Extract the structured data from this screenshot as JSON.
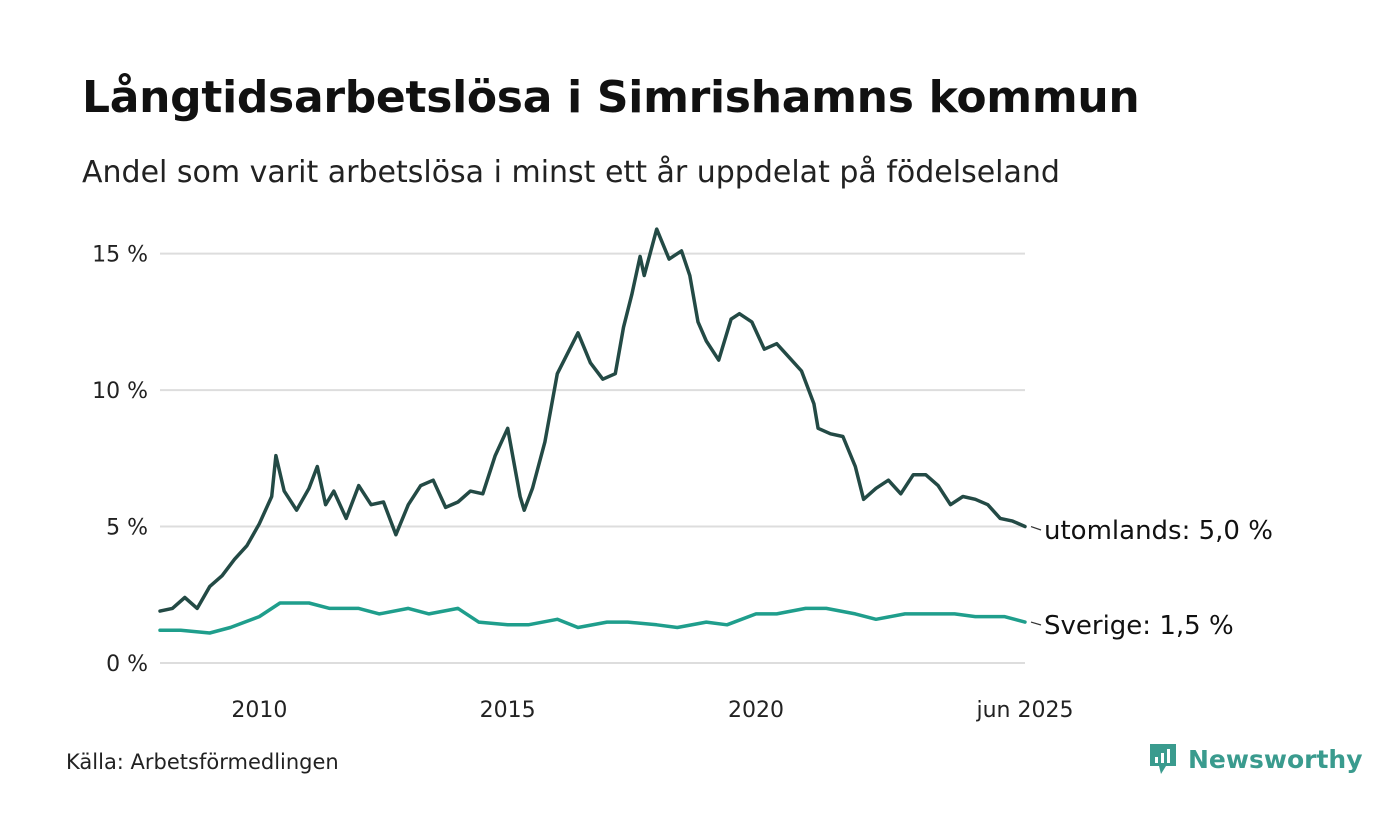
{
  "header": {
    "title": "Långtidsarbetslösa i Simrishamns kommun",
    "subtitle": "Andel som varit arbetslösa i minst ett år uppdelat på födelseland"
  },
  "footer": {
    "source": "Källa: Arbetsförmedlingen",
    "brand": "Newsworthy",
    "brand_icon": "newsworthy-logo-icon"
  },
  "colors": {
    "utomlands": "#234a45",
    "sverige": "#1f9e8c",
    "grid": "#dddddd",
    "brand": "#3a9b8e"
  },
  "chart_data": {
    "type": "line",
    "title": "Långtidsarbetslösa i Simrishamns kommun",
    "subtitle": "Andel som varit arbetslösa i minst ett år uppdelat på födelseland",
    "xlabel": "",
    "ylabel": "",
    "ylim": [
      0,
      15.5
    ],
    "xlim": [
      "2008-01",
      "2025-06"
    ],
    "grid": true,
    "legend": "end-of-line labels",
    "y_ticks": [
      {
        "value": 0,
        "label": "0 %"
      },
      {
        "value": 5,
        "label": "5 %"
      },
      {
        "value": 10,
        "label": "10 %"
      },
      {
        "value": 15,
        "label": "15 %"
      }
    ],
    "x_ticks": [
      {
        "value": "2010-01",
        "label": "2010"
      },
      {
        "value": "2015-01",
        "label": "2015"
      },
      {
        "value": "2020-01",
        "label": "2020"
      },
      {
        "value": "2025-06",
        "label": "jun 2025"
      }
    ],
    "series": [
      {
        "key": "utomlands",
        "end_label": "utomlands: 5,0 %",
        "points": [
          [
            "2008-01",
            1.9
          ],
          [
            "2008-04",
            2.0
          ],
          [
            "2008-07",
            2.4
          ],
          [
            "2008-10",
            2.0
          ],
          [
            "2009-01",
            2.8
          ],
          [
            "2009-04",
            3.2
          ],
          [
            "2009-07",
            3.8
          ],
          [
            "2009-10",
            4.3
          ],
          [
            "2010-01",
            5.1
          ],
          [
            "2010-04",
            6.1
          ],
          [
            "2010-05",
            7.6
          ],
          [
            "2010-07",
            6.3
          ],
          [
            "2010-10",
            5.6
          ],
          [
            "2011-01",
            6.4
          ],
          [
            "2011-03",
            7.2
          ],
          [
            "2011-05",
            5.8
          ],
          [
            "2011-07",
            6.3
          ],
          [
            "2011-10",
            5.3
          ],
          [
            "2012-01",
            6.5
          ],
          [
            "2012-04",
            5.8
          ],
          [
            "2012-07",
            5.9
          ],
          [
            "2012-10",
            4.7
          ],
          [
            "2013-01",
            5.8
          ],
          [
            "2013-04",
            6.5
          ],
          [
            "2013-07",
            6.7
          ],
          [
            "2013-10",
            5.7
          ],
          [
            "2014-01",
            5.9
          ],
          [
            "2014-04",
            6.3
          ],
          [
            "2014-07",
            6.2
          ],
          [
            "2014-10",
            7.6
          ],
          [
            "2015-01",
            8.6
          ],
          [
            "2015-04",
            6.1
          ],
          [
            "2015-05",
            5.6
          ],
          [
            "2015-07",
            6.4
          ],
          [
            "2015-10",
            8.1
          ],
          [
            "2016-01",
            10.6
          ],
          [
            "2016-04",
            11.5
          ],
          [
            "2016-06",
            12.1
          ],
          [
            "2016-09",
            11.0
          ],
          [
            "2016-12",
            10.4
          ],
          [
            "2017-03",
            10.6
          ],
          [
            "2017-05",
            12.3
          ],
          [
            "2017-07",
            13.5
          ],
          [
            "2017-09",
            14.9
          ],
          [
            "2017-10",
            14.2
          ],
          [
            "2018-01",
            15.9
          ],
          [
            "2018-04",
            14.8
          ],
          [
            "2018-07",
            15.1
          ],
          [
            "2018-09",
            14.2
          ],
          [
            "2018-11",
            12.5
          ],
          [
            "2019-01",
            11.8
          ],
          [
            "2019-04",
            11.1
          ],
          [
            "2019-07",
            12.6
          ],
          [
            "2019-09",
            12.8
          ],
          [
            "2019-12",
            12.5
          ],
          [
            "2020-03",
            11.5
          ],
          [
            "2020-06",
            11.7
          ],
          [
            "2020-09",
            11.2
          ],
          [
            "2020-12",
            10.7
          ],
          [
            "2021-03",
            9.5
          ],
          [
            "2021-04",
            8.6
          ],
          [
            "2021-07",
            8.4
          ],
          [
            "2021-10",
            8.3
          ],
          [
            "2022-01",
            7.2
          ],
          [
            "2022-03",
            6.0
          ],
          [
            "2022-06",
            6.4
          ],
          [
            "2022-09",
            6.7
          ],
          [
            "2022-12",
            6.2
          ],
          [
            "2023-03",
            6.9
          ],
          [
            "2023-06",
            6.9
          ],
          [
            "2023-09",
            6.5
          ],
          [
            "2023-12",
            5.8
          ],
          [
            "2024-03",
            6.1
          ],
          [
            "2024-06",
            6.0
          ],
          [
            "2024-09",
            5.8
          ],
          [
            "2024-12",
            5.3
          ],
          [
            "2025-03",
            5.2
          ],
          [
            "2025-06",
            5.0
          ]
        ]
      },
      {
        "key": "sverige",
        "end_label": "Sverige: 1,5 %",
        "points": [
          [
            "2008-01",
            1.2
          ],
          [
            "2008-06",
            1.2
          ],
          [
            "2009-01",
            1.1
          ],
          [
            "2009-06",
            1.3
          ],
          [
            "2010-01",
            1.7
          ],
          [
            "2010-06",
            2.2
          ],
          [
            "2011-01",
            2.2
          ],
          [
            "2011-06",
            2.0
          ],
          [
            "2012-01",
            2.0
          ],
          [
            "2012-06",
            1.8
          ],
          [
            "2013-01",
            2.0
          ],
          [
            "2013-06",
            1.8
          ],
          [
            "2014-01",
            2.0
          ],
          [
            "2014-06",
            1.5
          ],
          [
            "2015-01",
            1.4
          ],
          [
            "2015-06",
            1.4
          ],
          [
            "2016-01",
            1.6
          ],
          [
            "2016-06",
            1.3
          ],
          [
            "2017-01",
            1.5
          ],
          [
            "2017-06",
            1.5
          ],
          [
            "2018-01",
            1.4
          ],
          [
            "2018-06",
            1.3
          ],
          [
            "2019-01",
            1.5
          ],
          [
            "2019-06",
            1.4
          ],
          [
            "2020-01",
            1.8
          ],
          [
            "2020-06",
            1.8
          ],
          [
            "2021-01",
            2.0
          ],
          [
            "2021-06",
            2.0
          ],
          [
            "2022-01",
            1.8
          ],
          [
            "2022-06",
            1.6
          ],
          [
            "2023-01",
            1.8
          ],
          [
            "2023-06",
            1.8
          ],
          [
            "2024-01",
            1.8
          ],
          [
            "2024-06",
            1.7
          ],
          [
            "2025-01",
            1.7
          ],
          [
            "2025-06",
            1.5
          ]
        ]
      }
    ]
  }
}
